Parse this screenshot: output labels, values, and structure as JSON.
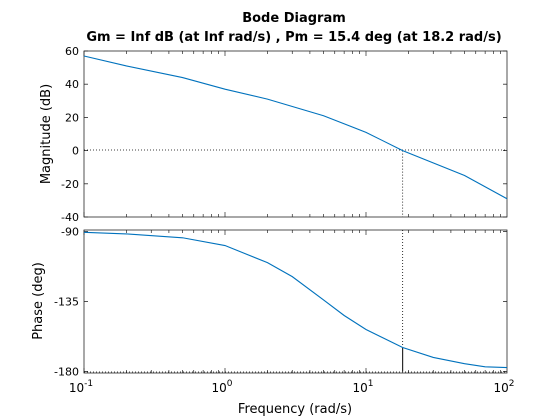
{
  "chart_data": {
    "type": "line",
    "title": "Bode Diagram",
    "subtitle": "Gm = Inf dB (at Inf rad/s) ,  Pm = 15.4 deg (at 18.2 rad/s)",
    "xlabel": "Frequency  (rad/s)",
    "xscale": "log",
    "xlim": [
      0.1,
      100
    ],
    "x_tick_labels": [
      {
        "base": "10",
        "exp": "-1"
      },
      {
        "base": "10",
        "exp": "0"
      },
      {
        "base": "10",
        "exp": "1"
      },
      {
        "base": "10",
        "exp": "2"
      }
    ],
    "x_tick_values": [
      0.1,
      1,
      10,
      100
    ],
    "series_color": "#0072BD",
    "crossover_frequency": 18.2,
    "magnitude": {
      "ylabel": "Magnitude (dB)",
      "ylim": [
        -40,
        60
      ],
      "y_ticks": [
        60,
        40,
        20,
        0,
        -20,
        -40
      ],
      "y_tick_labels": [
        "60",
        "40",
        "20",
        "0",
        "-20",
        "-40"
      ],
      "x": [
        0.1,
        0.2,
        0.5,
        1,
        2,
        5,
        10,
        18.2,
        50,
        100
      ],
      "values": [
        57,
        51,
        44,
        37,
        31,
        21,
        11,
        0,
        -15,
        -29
      ]
    },
    "phase": {
      "ylabel": "Phase (deg)",
      "ylim": [
        -181,
        -89
      ],
      "y_ticks": [
        -90,
        -135,
        -180
      ],
      "y_tick_labels": [
        "-90",
        "-135",
        "-180"
      ],
      "x": [
        0.1,
        0.2,
        0.5,
        1,
        2,
        3,
        5,
        7,
        10,
        18.2,
        30,
        50,
        70,
        100
      ],
      "values": [
        -90.5,
        -91.5,
        -94,
        -99,
        -110,
        -119,
        -134,
        -144,
        -153,
        -164.6,
        -171,
        -175,
        -177,
        -177.5
      ]
    }
  }
}
